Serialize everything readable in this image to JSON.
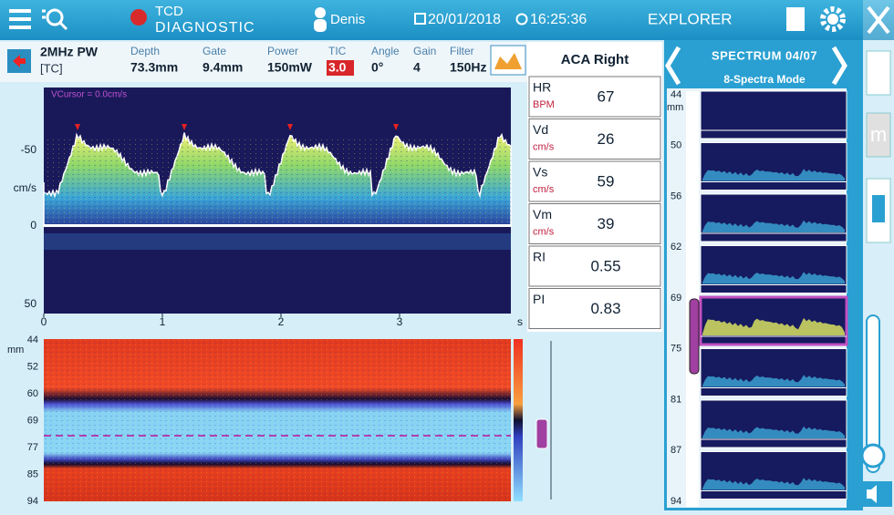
{
  "top_bar": {
    "brand_line1": "TCD",
    "brand_line2": "DIAGNOSTIC",
    "user": "Denis",
    "date": "20/01/2018",
    "time": "16:25:36",
    "mode": "EXPLORER"
  },
  "probe": {
    "frequency": "2MHz PW",
    "window": "[TC]"
  },
  "parameters": [
    {
      "label": "Depth",
      "value": "73.3mm"
    },
    {
      "label": "Gate",
      "value": "9.4mm"
    },
    {
      "label": "Power",
      "value": "150mW"
    },
    {
      "label": "TIC",
      "value": "3.0"
    },
    {
      "label": "Angle",
      "value": "0°"
    },
    {
      "label": "Gain",
      "value": "4"
    },
    {
      "label": "Filter",
      "value": "150Hz"
    }
  ],
  "measurements": {
    "title": "ACA Right",
    "rows": [
      {
        "label": "HR",
        "unit": "BPM",
        "value": "67"
      },
      {
        "label": "Vd",
        "unit": "cm/s",
        "value": "26"
      },
      {
        "label": "Vs",
        "unit": "cm/s",
        "value": "59"
      },
      {
        "label": "Vm",
        "unit": "cm/s",
        "value": "39"
      },
      {
        "label": "RI",
        "value": "0.55"
      },
      {
        "label": "PI",
        "value": "0.83"
      }
    ]
  },
  "spectrum": {
    "cursor": "VCursor = 0.0cm/s",
    "y_labels": [
      "-50",
      "0",
      "50"
    ],
    "y_unit": "cm/s",
    "x_labels": [
      "0",
      "1",
      "2",
      "3"
    ],
    "x_unit": "s"
  },
  "mmode": {
    "unit": "mm",
    "depth_labels": [
      "44",
      "52",
      "60",
      "69",
      "77",
      "85",
      "94"
    ]
  },
  "spectra_panel": {
    "title": "SPECTRUM 04/07",
    "mode": "8-Spectra Mode",
    "unit": "mm",
    "depth_labels": [
      "44",
      "50",
      "56",
      "62",
      "69",
      "75",
      "81",
      "87",
      "94"
    ]
  }
}
